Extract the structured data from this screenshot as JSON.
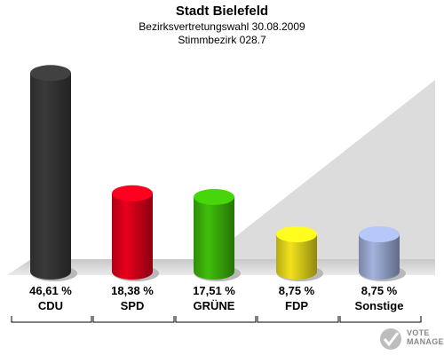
{
  "header": {
    "title": "Stadt Bielefeld",
    "subtitle": "Bezirksvertretungswahl 30.08.2009",
    "district": "Stimmbezirk 028.7"
  },
  "chart_data": {
    "type": "bar",
    "categories": [
      "CDU",
      "SPD",
      "GRÜNE",
      "FDP",
      "Sonstige"
    ],
    "values": [
      46.61,
      18.38,
      17.51,
      8.75,
      8.75
    ],
    "value_labels": [
      "46,61 %",
      "18,38 %",
      "17,51 %",
      "8,75 %",
      "8,75 %"
    ],
    "colors": [
      "#3a3a3a",
      "#e8001c",
      "#3fbf0a",
      "#f2e21c",
      "#a2b3dd"
    ],
    "ylim": [
      0,
      50
    ],
    "grid": false,
    "legend": "none"
  },
  "branding": {
    "logo_text": "VOTE MANAGER",
    "logo_icon": "vote-manager-check-icon"
  }
}
